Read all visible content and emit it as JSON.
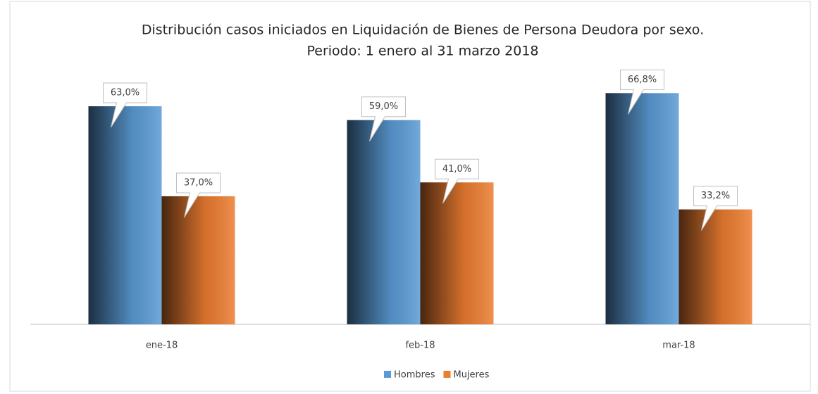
{
  "chart_data": {
    "type": "bar",
    "title": "Distribución casos iniciados en Liquidación de Bienes de Persona Deudora por sexo.",
    "subtitle": "Periodo: 1 enero al 31 marzo 2018",
    "categories": [
      "ene-18",
      "feb-18",
      "mar-18"
    ],
    "series": [
      {
        "name": "Hombres",
        "color": "#5b9bd5",
        "values": [
          63.0,
          59.0,
          66.8
        ],
        "value_labels": [
          "63,0%",
          "59,0%",
          "66,8%"
        ]
      },
      {
        "name": "Mujeres",
        "color": "#ed7d31",
        "values": [
          37.0,
          41.0,
          33.2
        ],
        "value_labels": [
          "37,0%",
          "41,0%",
          "33,2%"
        ]
      }
    ],
    "legend": "bottom"
  }
}
